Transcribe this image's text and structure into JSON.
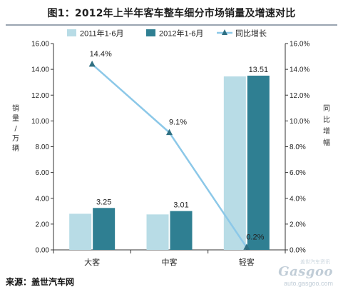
{
  "title": "图1：2012年上半年客车整车细分市场销量及增速对比",
  "source": "来源：盖世汽车网",
  "watermark": {
    "brand": "Gasgoo",
    "url": "auto.gasgoo.com",
    "tag": "盖世汽车资讯"
  },
  "chart_data": {
    "type": "bar",
    "categories": [
      "大客",
      "中客",
      "轻客"
    ],
    "series": [
      {
        "name": "2011年1-6月",
        "values": [
          2.8,
          2.75,
          13.45
        ],
        "color": "#b8dce6"
      },
      {
        "name": "2012年1-6月",
        "values": [
          3.25,
          3.01,
          13.51
        ],
        "color": "#2f7f92"
      }
    ],
    "line_series": {
      "name": "同比增长",
      "values": [
        14.4,
        9.1,
        0.2
      ],
      "labels": [
        "14.4%",
        "9.1%",
        "0.2%"
      ],
      "color": "#8cc8e8"
    },
    "bar_labels": [
      "3.25",
      "3.01",
      "13.51"
    ],
    "ylabel": "销量/万辆",
    "y2label": "同比增幅",
    "ylim": [
      0,
      16
    ],
    "y2lim": [
      0,
      16
    ],
    "yticks": [
      "0.00",
      "2.00",
      "4.00",
      "6.00",
      "8.00",
      "10.00",
      "12.00",
      "14.00",
      "16.00"
    ],
    "y2ticks": [
      "0.0%",
      "2.0%",
      "4.0%",
      "6.0%",
      "8.0%",
      "10.0%",
      "12.0%",
      "14.0%",
      "16.0%"
    ],
    "legend_position": "top",
    "grid": false
  }
}
